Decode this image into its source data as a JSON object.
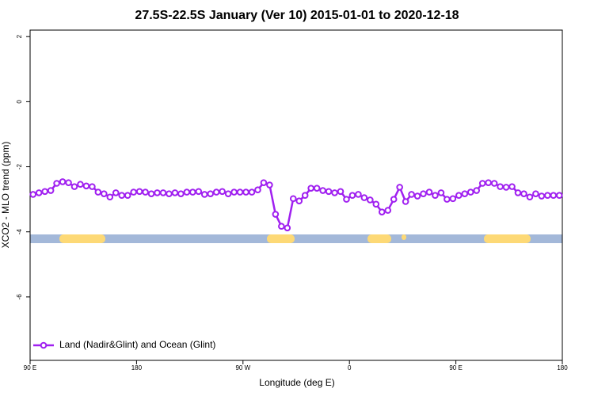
{
  "chart_data": {
    "type": "line",
    "title": "27.5S-22.5S January (Ver 10)   2015-01-01 to 2020-12-18",
    "x_label": "Longitude (deg E)",
    "y_label": "XCO2 - MLO trend (ppm)",
    "xlim": [
      90,
      540
    ],
    "ylim": [
      -7.95,
      2.2
    ],
    "xticks": [
      {
        "value": 90,
        "label": "90 E"
      },
      180,
      {
        "value": 270,
        "label": "90 W"
      },
      {
        "value": 360,
        "label": "0"
      },
      {
        "value": 450,
        "label": "90 E"
      },
      {
        "value": 540,
        "label": "180"
      }
    ],
    "yticks": [
      2,
      0,
      -2,
      -4,
      -6
    ],
    "legend": "bottom-left",
    "x": [
      92.5,
      97.5,
      102.5,
      107.5,
      112.5,
      117.5,
      122.5,
      127.5,
      132.5,
      137.5,
      142.5,
      147.5,
      152.5,
      157.5,
      162.5,
      167.5,
      172.5,
      177.5,
      182.5,
      187.5,
      192.5,
      197.5,
      202.5,
      207.5,
      212.5,
      217.5,
      222.5,
      227.5,
      232.5,
      237.5,
      242.5,
      247.5,
      252.5,
      257.5,
      262.5,
      267.5,
      272.5,
      277.5,
      282.5,
      287.5,
      292.5,
      297.5,
      302.5,
      307.5,
      312.5,
      317.5,
      322.5,
      327.5,
      332.5,
      337.5,
      342.5,
      347.5,
      352.5,
      357.5,
      362.5,
      367.5,
      372.5,
      377.5,
      382.5,
      387.5,
      392.5,
      397.5,
      402.5,
      407.5,
      412.5,
      417.5,
      422.5,
      427.5,
      432.5,
      437.5,
      442.5,
      447.5,
      452.5,
      457.5,
      462.5,
      467.5,
      472.5,
      477.5,
      482.5,
      487.5,
      492.5,
      497.5,
      502.5,
      507.5,
      512.5,
      517.5,
      522.5,
      527.5,
      532.5,
      537.5
    ],
    "series": [
      {
        "name": "Land (Nadir&Glint) and Ocean (Glint)",
        "color": "#a020f0",
        "values": [
          -2.85,
          -2.8,
          -2.76,
          -2.73,
          -2.51,
          -2.46,
          -2.49,
          -2.61,
          -2.54,
          -2.59,
          -2.61,
          -2.78,
          -2.83,
          -2.93,
          -2.8,
          -2.88,
          -2.88,
          -2.78,
          -2.76,
          -2.78,
          -2.83,
          -2.8,
          -2.8,
          -2.83,
          -2.8,
          -2.83,
          -2.78,
          -2.78,
          -2.76,
          -2.85,
          -2.83,
          -2.78,
          -2.76,
          -2.83,
          -2.78,
          -2.78,
          -2.78,
          -2.78,
          -2.71,
          -2.49,
          -2.56,
          -3.46,
          -3.83,
          -3.88,
          -2.98,
          -3.05,
          -2.88,
          -2.66,
          -2.66,
          -2.73,
          -2.76,
          -2.8,
          -2.76,
          -3.0,
          -2.88,
          -2.85,
          -2.95,
          -3.02,
          -3.15,
          -3.39,
          -3.34,
          -3.0,
          -2.63,
          -3.07,
          -2.85,
          -2.9,
          -2.83,
          -2.78,
          -2.88,
          -2.8,
          -3.0,
          -2.98,
          -2.88,
          -2.83,
          -2.78,
          -2.73,
          -2.51,
          -2.49,
          -2.51,
          -2.61,
          -2.63,
          -2.61,
          -2.8,
          -2.83,
          -2.93,
          -2.83,
          -2.9,
          -2.88,
          -2.88,
          -2.88
        ]
      }
    ]
  }
}
